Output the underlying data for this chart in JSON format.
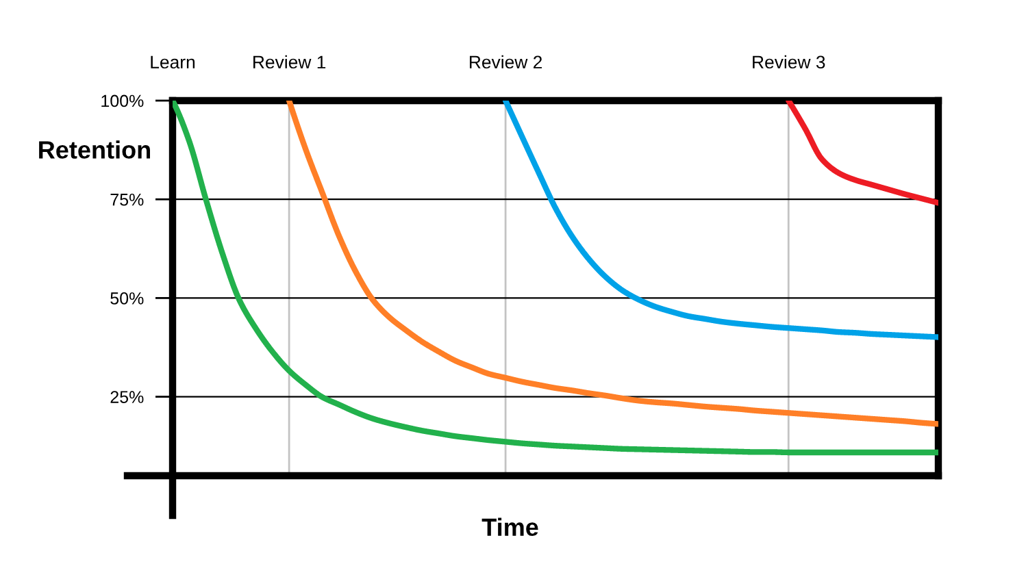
{
  "chart_data": {
    "type": "line",
    "xlabel": "Time",
    "ylabel": "Retention",
    "categories": [
      "Learn",
      null,
      null,
      null,
      null,
      null,
      null,
      "Review 1",
      null,
      null,
      null,
      null,
      null,
      null,
      null,
      null,
      null,
      null,
      null,
      null,
      "Review 2",
      null,
      null,
      null,
      null,
      null,
      null,
      null,
      null,
      null,
      null,
      null,
      null,
      null,
      null,
      null,
      null,
      "Review 3",
      null,
      null,
      null,
      null,
      null,
      null,
      null,
      null,
      null
    ],
    "series": [
      {
        "color": "#22b14c",
        "values": [
          100,
          89.7,
          75.0,
          61.2,
          49.6,
          42.3,
          36.4,
          31.6,
          28.0,
          24.9,
          23.0,
          21.1,
          19.5,
          18.3,
          17.3,
          16.4,
          15.7,
          15.0,
          14.5,
          14.0,
          13.6,
          13.2,
          12.9,
          12.6,
          12.4,
          12.2,
          12.0,
          11.8,
          11.7,
          11.6,
          11.5,
          11.4,
          11.3,
          11.2,
          11.1,
          11.0,
          11.0,
          10.9,
          10.9,
          10.9,
          10.9,
          10.9,
          10.9,
          10.9,
          10.9,
          10.9,
          10.9
        ]
      },
      {
        "color": "#ff7f27",
        "values": [
          null,
          null,
          null,
          null,
          null,
          null,
          null,
          100,
          87.6,
          76.6,
          65.7,
          56.7,
          49.7,
          45.2,
          41.9,
          38.9,
          36.4,
          34.1,
          32.4,
          30.8,
          29.8,
          28.8,
          28.0,
          27.2,
          26.6,
          25.9,
          25.3,
          24.6,
          24.0,
          23.6,
          23.3,
          22.9,
          22.5,
          22.2,
          21.9,
          21.5,
          21.2,
          20.9,
          20.6,
          20.3,
          20.0,
          19.7,
          19.4,
          19.1,
          18.8,
          18.4,
          18.1
        ]
      },
      {
        "color": "#00a2e8",
        "values": [
          null,
          null,
          null,
          null,
          null,
          null,
          null,
          null,
          null,
          null,
          null,
          null,
          null,
          null,
          null,
          null,
          null,
          null,
          null,
          null,
          100,
          90.8,
          81.7,
          72.8,
          65.6,
          59.9,
          55.4,
          52.0,
          49.6,
          47.8,
          46.5,
          45.4,
          44.7,
          44.0,
          43.5,
          43.1,
          42.7,
          42.4,
          42.1,
          41.8,
          41.4,
          41.2,
          40.9,
          40.7,
          40.5,
          40.3,
          40.1
        ]
      },
      {
        "color": "#ed1c24",
        "values": [
          null,
          null,
          null,
          null,
          null,
          null,
          null,
          null,
          null,
          null,
          null,
          null,
          null,
          null,
          null,
          null,
          null,
          null,
          null,
          null,
          null,
          null,
          null,
          null,
          null,
          null,
          null,
          null,
          null,
          null,
          null,
          null,
          null,
          null,
          null,
          null,
          null,
          100,
          92.9,
          85.2,
          81.7,
          79.9,
          78.7,
          77.5,
          76.3,
          75.2,
          74.1
        ]
      }
    ],
    "ylim": [
      5,
      100
    ],
    "yticks": [
      {
        "value": 25,
        "label": "25%"
      },
      {
        "value": 50,
        "label": "50%"
      },
      {
        "value": 75,
        "label": "75%"
      },
      {
        "value": 100,
        "label": "100%"
      }
    ],
    "grid": true,
    "line_style": "solid"
  }
}
